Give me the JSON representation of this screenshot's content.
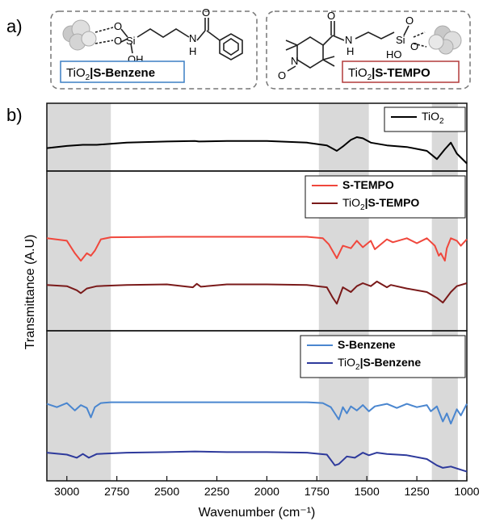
{
  "panel_a": {
    "tag": "a)",
    "left_label_prefix": "TiO",
    "left_label_sub": "2",
    "left_label_suffix": "|S-Benzene",
    "right_label_prefix": "TiO",
    "right_label_sub": "2",
    "right_label_suffix": "|S-TEMPO",
    "colors": {
      "benzene_box": "#3b7fc4",
      "tempo_box": "#b23a3a"
    },
    "atoms_left": [
      "O",
      "O",
      "Si",
      "OH",
      "N",
      "H",
      "O"
    ],
    "atoms_right": [
      "O",
      "N",
      "H",
      "Si",
      "O",
      "O",
      "HO",
      "N",
      "O"
    ]
  },
  "panel_b": {
    "tag": "b)"
  },
  "chart_data": {
    "type": "line",
    "xlabel": "Wavenumber (cm⁻¹)",
    "ylabel": "Transmittance (A.U)",
    "xlim": [
      3100,
      1000
    ],
    "x_reversed": true,
    "ticks": [
      3000,
      2750,
      2500,
      2250,
      2000,
      1750,
      1500,
      1250,
      1000
    ],
    "tick_labels": [
      "3000",
      "2750",
      "2500",
      "2250",
      "2000",
      "1750",
      "1500",
      "1250",
      "1000"
    ],
    "shaded_regions": [
      [
        3100,
        2780
      ],
      [
        1740,
        1490
      ],
      [
        1175,
        1045
      ]
    ],
    "legends": {
      "top": [
        {
          "prefix": "TiO",
          "sub": "2",
          "suffix": ""
        }
      ],
      "middle": [
        {
          "prefix": "",
          "sub": "",
          "suffix": "S-TEMPO"
        },
        {
          "prefix": "TiO",
          "sub": "2",
          "suffix": "|S-TEMPO"
        }
      ],
      "bottom": [
        {
          "prefix": "",
          "sub": "",
          "suffix": "S-Benzene"
        },
        {
          "prefix": "TiO",
          "sub": "2",
          "suffix": "|S-Benzene"
        }
      ]
    },
    "series": [
      {
        "name": "TiO2",
        "color": "#000000",
        "subplot": 0,
        "x": [
          3100,
          3000,
          2920,
          2850,
          2700,
          2500,
          2360,
          2340,
          2200,
          2000,
          1800,
          1700,
          1650,
          1620,
          1580,
          1550,
          1520,
          1480,
          1400,
          1300,
          1200,
          1150,
          1110,
          1080,
          1050,
          1000
        ],
        "y": [
          0.3,
          0.34,
          0.36,
          0.36,
          0.4,
          0.42,
          0.43,
          0.42,
          0.43,
          0.43,
          0.4,
          0.35,
          0.25,
          0.33,
          0.45,
          0.5,
          0.48,
          0.4,
          0.35,
          0.32,
          0.25,
          0.1,
          0.28,
          0.4,
          0.2,
          0.02
        ]
      },
      {
        "name": "S-TEMPO",
        "color": "#f0473c",
        "subplot": 1,
        "x": [
          3100,
          3000,
          2960,
          2930,
          2900,
          2880,
          2860,
          2830,
          2780,
          2500,
          2360,
          2200,
          2000,
          1800,
          1720,
          1690,
          1650,
          1620,
          1580,
          1550,
          1520,
          1480,
          1460,
          1400,
          1370,
          1300,
          1250,
          1200,
          1160,
          1140,
          1130,
          1110,
          1100,
          1080,
          1050,
          1030,
          1000
        ],
        "y": [
          0.9,
          0.85,
          0.6,
          0.45,
          0.6,
          0.55,
          0.65,
          0.88,
          0.92,
          0.93,
          0.93,
          0.93,
          0.93,
          0.93,
          0.9,
          0.78,
          0.5,
          0.75,
          0.7,
          0.85,
          0.72,
          0.85,
          0.68,
          0.88,
          0.82,
          0.9,
          0.8,
          0.9,
          0.75,
          0.55,
          0.6,
          0.45,
          0.7,
          0.9,
          0.85,
          0.75,
          0.88
        ]
      },
      {
        "name": "TiO2|S-TEMPO",
        "color": "#7a1a1a",
        "subplot": 1,
        "x": [
          3100,
          3000,
          2950,
          2930,
          2900,
          2850,
          2700,
          2500,
          2370,
          2350,
          2330,
          2200,
          2000,
          1800,
          1700,
          1670,
          1650,
          1620,
          1580,
          1550,
          1520,
          1480,
          1450,
          1400,
          1380,
          1300,
          1200,
          1150,
          1120,
          1080,
          1050,
          1000
        ],
        "y": [
          0.42,
          0.4,
          0.33,
          0.28,
          0.36,
          0.4,
          0.42,
          0.43,
          0.38,
          0.44,
          0.39,
          0.43,
          0.43,
          0.42,
          0.38,
          0.2,
          0.1,
          0.38,
          0.3,
          0.4,
          0.45,
          0.4,
          0.48,
          0.38,
          0.42,
          0.36,
          0.3,
          0.2,
          0.12,
          0.3,
          0.4,
          0.45
        ]
      },
      {
        "name": "S-Benzene",
        "color": "#4a86cf",
        "subplot": 2,
        "x": [
          3100,
          3050,
          3000,
          2960,
          2930,
          2900,
          2880,
          2860,
          2830,
          2780,
          2500,
          2200,
          2000,
          1800,
          1720,
          1680,
          1640,
          1620,
          1600,
          1580,
          1550,
          1520,
          1490,
          1460,
          1400,
          1350,
          1300,
          1250,
          1200,
          1180,
          1150,
          1120,
          1100,
          1080,
          1050,
          1030,
          1000
        ],
        "y": [
          0.78,
          0.7,
          0.8,
          0.62,
          0.75,
          0.68,
          0.45,
          0.7,
          0.8,
          0.82,
          0.82,
          0.82,
          0.82,
          0.82,
          0.8,
          0.7,
          0.4,
          0.7,
          0.55,
          0.72,
          0.62,
          0.75,
          0.6,
          0.72,
          0.78,
          0.68,
          0.78,
          0.7,
          0.75,
          0.6,
          0.72,
          0.35,
          0.55,
          0.3,
          0.65,
          0.5,
          0.78
        ]
      },
      {
        "name": "TiO2|S-Benzene",
        "color": "#2e3a9c",
        "subplot": 2,
        "x": [
          3100,
          3000,
          2950,
          2920,
          2890,
          2850,
          2700,
          2500,
          2360,
          2200,
          2000,
          1800,
          1700,
          1660,
          1640,
          1600,
          1560,
          1520,
          1490,
          1450,
          1400,
          1300,
          1200,
          1150,
          1120,
          1080,
          1050,
          1000
        ],
        "y": [
          0.3,
          0.27,
          0.22,
          0.28,
          0.22,
          0.28,
          0.3,
          0.31,
          0.32,
          0.31,
          0.31,
          0.3,
          0.27,
          0.1,
          0.12,
          0.24,
          0.22,
          0.3,
          0.26,
          0.3,
          0.28,
          0.26,
          0.2,
          0.1,
          0.06,
          0.08,
          0.05,
          0.0
        ]
      }
    ]
  }
}
